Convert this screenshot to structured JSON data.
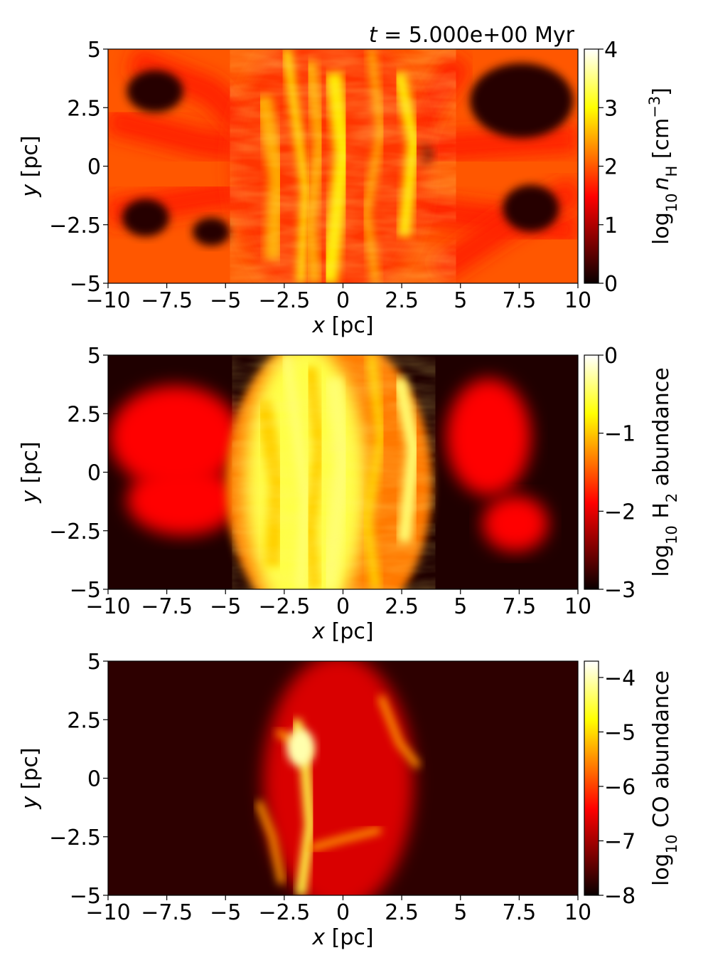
{
  "figure": {
    "time_label": {
      "var": "t",
      "rest": " = 5.000e+00 Myr"
    }
  },
  "colormap": "hot",
  "chart_data": [
    {
      "type": "heatmap",
      "field": "hydrogen number density",
      "x_label": {
        "var": "x",
        "unit": " [pc]"
      },
      "y_label": {
        "var": "y",
        "unit": " [pc]"
      },
      "xlim": [
        -10,
        10
      ],
      "ylim": [
        -5,
        5
      ],
      "x_ticks": [
        "−10",
        "−7.5",
        "−5",
        "−2.5",
        "0",
        "2.5",
        "5",
        "7.5",
        "10"
      ],
      "y_ticks": [
        "5",
        "2.5",
        "0",
        "−2.5",
        "−5"
      ],
      "colorbar": {
        "label": {
          "prefix": "log",
          "sub": "10",
          "var": "n",
          "varsub": "H",
          "rest": " [cm",
          "sup": "−3",
          "end": "]"
        },
        "range": [
          0,
          4
        ],
        "ticks": [
          "4",
          "3",
          "2",
          "1",
          "0"
        ]
      },
      "background_level": 0.5
    },
    {
      "type": "heatmap",
      "field": "H2 abundance",
      "x_label": {
        "var": "x",
        "unit": " [pc]"
      },
      "y_label": {
        "var": "y",
        "unit": " [pc]"
      },
      "xlim": [
        -10,
        10
      ],
      "ylim": [
        -5,
        5
      ],
      "x_ticks": [
        "−10",
        "−7.5",
        "−5",
        "−2.5",
        "0",
        "2.5",
        "5",
        "7.5",
        "10"
      ],
      "y_ticks": [
        "5",
        "2.5",
        "0",
        "−2.5",
        "−5"
      ],
      "colorbar": {
        "label": {
          "prefix": "log",
          "sub": "10",
          "var": "",
          "varsub": "",
          "rest": " H",
          "sup": "",
          "sub2": "2",
          "end": " abundance"
        },
        "range": [
          -3,
          0
        ],
        "ticks": [
          "0",
          "−1",
          "−2",
          "−3"
        ]
      },
      "background_level": 0.03
    },
    {
      "type": "heatmap",
      "field": "CO abundance",
      "x_label": {
        "var": "x",
        "unit": " [pc]"
      },
      "y_label": {
        "var": "y",
        "unit": " [pc]"
      },
      "xlim": [
        -10,
        10
      ],
      "ylim": [
        -5,
        5
      ],
      "x_ticks": [
        "−10",
        "−7.5",
        "−5",
        "−2.5",
        "0",
        "2.5",
        "5",
        "7.5",
        "10"
      ],
      "y_ticks": [
        "5",
        "2.5",
        "0",
        "−2.5",
        "−5"
      ],
      "colorbar": {
        "label": {
          "prefix": "log",
          "sub": "10",
          "var": "",
          "varsub": "",
          "rest": " CO abundance",
          "sup": "",
          "end": ""
        },
        "range": [
          -8,
          -3.7
        ],
        "ticks": [
          "−4",
          "−5",
          "−6",
          "−7",
          "−8"
        ]
      },
      "background_level": 0.05
    }
  ]
}
